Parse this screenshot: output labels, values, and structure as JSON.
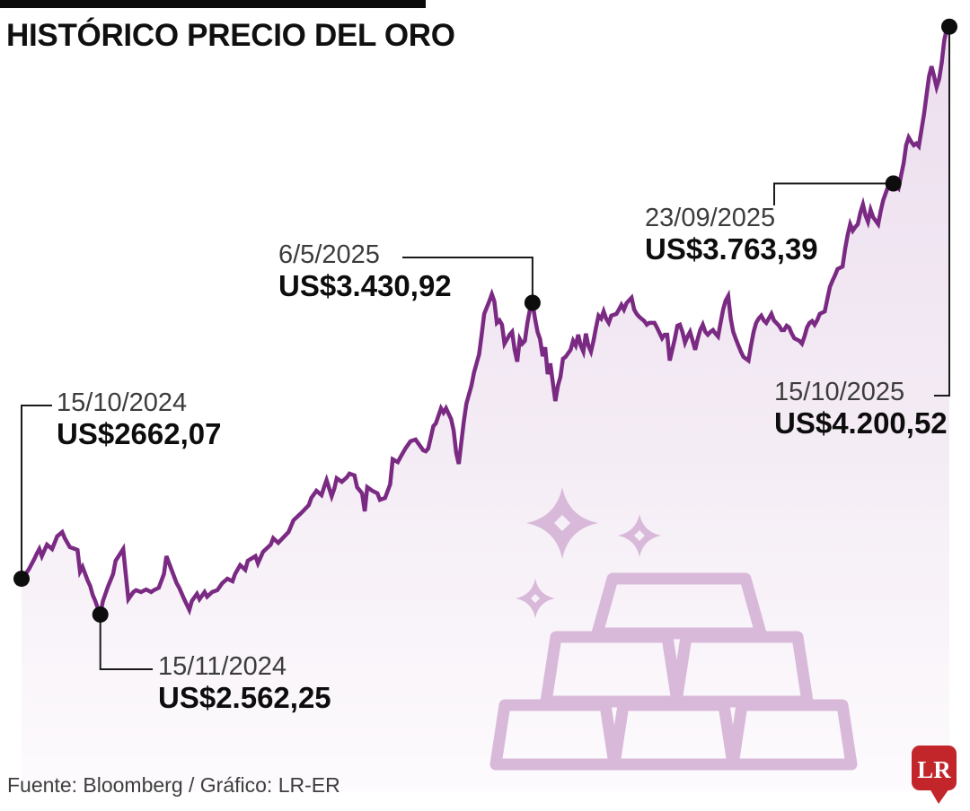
{
  "title": "HISTÓRICO PRECIO DEL ORO",
  "footer": {
    "source": "Fuente: Bloomberg / Gráfico: LR-ER"
  },
  "logo": {
    "text": "LR",
    "color": "#c2262b"
  },
  "colors": {
    "line": "#7a2a82",
    "fill_top": "#ecdeee",
    "fill_mid": "#f4ecf5",
    "fill_bottom": "#fdfbfd",
    "marker": "#0d0d0d",
    "connector": "#1a1a1a",
    "watermark": "#d9b9da",
    "title_bar": "#0b0b0b"
  },
  "chart_data": {
    "type": "area",
    "title": "HISTÓRICO PRECIO DEL ORO",
    "x_axis": {
      "unit": "days since 15/10/2024",
      "start": "15/10/2024",
      "end": "15/10/2025"
    },
    "y_axis": {
      "unit": "USD per troy ounce",
      "approx_range": [
        2550,
        4210
      ]
    },
    "grid": false,
    "legend": false,
    "values_are_approximate_except_annotations": true,
    "annotations": [
      {
        "id": "p1",
        "date": "15/10/2024",
        "price": 2662.07,
        "price_label": "US$2662,07",
        "day": 0
      },
      {
        "id": "p2",
        "date": "15/11/2024",
        "price": 2562.25,
        "price_label": "US$2.562,25",
        "day": 31
      },
      {
        "id": "p3",
        "date": "6/5/2025",
        "price": 3430.92,
        "price_label": "US$3.430,92",
        "day": 201
      },
      {
        "id": "p4",
        "date": "23/09/2025",
        "price": 3763.39,
        "price_label": "US$3.763,39",
        "day": 343
      },
      {
        "id": "p5",
        "date": "15/10/2025",
        "price": 4200.52,
        "price_label": "US$4.200,52",
        "day": 365
      }
    ],
    "series": [
      [
        0,
        2662.07
      ],
      [
        1,
        2668
      ],
      [
        3,
        2690
      ],
      [
        5,
        2717
      ],
      [
        6,
        2732
      ],
      [
        7,
        2745
      ],
      [
        8,
        2725
      ],
      [
        10,
        2757
      ],
      [
        12,
        2745
      ],
      [
        13,
        2762
      ],
      [
        14,
        2780
      ],
      [
        16,
        2792
      ],
      [
        17,
        2775
      ],
      [
        19,
        2750
      ],
      [
        21,
        2745
      ],
      [
        22,
        2742
      ],
      [
        23,
        2682
      ],
      [
        24,
        2695
      ],
      [
        26,
        2657
      ],
      [
        27,
        2642
      ],
      [
        28,
        2617
      ],
      [
        29,
        2600
      ],
      [
        30,
        2580
      ],
      [
        31,
        2562.25
      ],
      [
        32,
        2600
      ],
      [
        34,
        2640
      ],
      [
        36,
        2675
      ],
      [
        37,
        2712
      ],
      [
        40,
        2745
      ],
      [
        41,
        2675
      ],
      [
        42,
        2605
      ],
      [
        44,
        2625
      ],
      [
        45,
        2630
      ],
      [
        47,
        2625
      ],
      [
        49,
        2632
      ],
      [
        51,
        2625
      ],
      [
        52,
        2630
      ],
      [
        54,
        2637
      ],
      [
        56,
        2675
      ],
      [
        57,
        2725
      ],
      [
        59,
        2687
      ],
      [
        61,
        2650
      ],
      [
        62,
        2637
      ],
      [
        64,
        2605
      ],
      [
        66,
        2575
      ],
      [
        67,
        2600
      ],
      [
        69,
        2620
      ],
      [
        70,
        2605
      ],
      [
        72,
        2625
      ],
      [
        73,
        2612
      ],
      [
        75,
        2625
      ],
      [
        77,
        2630
      ],
      [
        79,
        2650
      ],
      [
        81,
        2662
      ],
      [
        83,
        2655
      ],
      [
        84,
        2675
      ],
      [
        86,
        2700
      ],
      [
        88,
        2687
      ],
      [
        89,
        2712
      ],
      [
        92,
        2725
      ],
      [
        93,
        2705
      ],
      [
        95,
        2737
      ],
      [
        98,
        2757
      ],
      [
        99,
        2775
      ],
      [
        101,
        2762
      ],
      [
        105,
        2792
      ],
      [
        107,
        2825
      ],
      [
        110,
        2845
      ],
      [
        113,
        2867
      ],
      [
        114,
        2887
      ],
      [
        116,
        2907
      ],
      [
        118,
        2895
      ],
      [
        119,
        2917
      ],
      [
        120,
        2937
      ],
      [
        122,
        2892
      ],
      [
        123,
        2912
      ],
      [
        124,
        2942
      ],
      [
        126,
        2932
      ],
      [
        128,
        2945
      ],
      [
        129,
        2955
      ],
      [
        131,
        2950
      ],
      [
        132,
        2917
      ],
      [
        134,
        2900
      ],
      [
        135,
        2850
      ],
      [
        136,
        2917
      ],
      [
        138,
        2907
      ],
      [
        140,
        2900
      ],
      [
        141,
        2882
      ],
      [
        143,
        2887
      ],
      [
        145,
        2925
      ],
      [
        146,
        2995
      ],
      [
        148,
        2987
      ],
      [
        149,
        3000
      ],
      [
        151,
        3025
      ],
      [
        153,
        3045
      ],
      [
        155,
        3050
      ],
      [
        156,
        3040
      ],
      [
        158,
        3020
      ],
      [
        159,
        3017
      ],
      [
        160,
        3025
      ],
      [
        162,
        3087
      ],
      [
        163,
        3095
      ],
      [
        165,
        3137
      ],
      [
        166,
        3125
      ],
      [
        167,
        3137
      ],
      [
        169,
        3107
      ],
      [
        170,
        3075
      ],
      [
        171,
        3012
      ],
      [
        172,
        2982
      ],
      [
        174,
        3100
      ],
      [
        175,
        3150
      ],
      [
        177,
        3200
      ],
      [
        178,
        3237
      ],
      [
        180,
        3287
      ],
      [
        181,
        3342
      ],
      [
        182,
        3400
      ],
      [
        184,
        3435
      ],
      [
        185,
        3455
      ],
      [
        186,
        3435
      ],
      [
        187,
        3375
      ],
      [
        188,
        3382
      ],
      [
        189,
        3370
      ],
      [
        190,
        3317
      ],
      [
        192,
        3342
      ],
      [
        193,
        3350
      ],
      [
        194,
        3300
      ],
      [
        195,
        3267
      ],
      [
        196,
        3330
      ],
      [
        197,
        3317
      ],
      [
        198,
        3325
      ],
      [
        199,
        3375
      ],
      [
        200,
        3412
      ],
      [
        201,
        3430.92
      ],
      [
        202,
        3387
      ],
      [
        203,
        3350
      ],
      [
        204,
        3330
      ],
      [
        205,
        3282
      ],
      [
        206,
        3307
      ],
      [
        207,
        3232
      ],
      [
        208,
        3262
      ],
      [
        210,
        3157
      ],
      [
        211,
        3200
      ],
      [
        212,
        3225
      ],
      [
        213,
        3275
      ],
      [
        214,
        3280
      ],
      [
        216,
        3300
      ],
      [
        217,
        3325
      ],
      [
        218,
        3312
      ],
      [
        219,
        3342
      ],
      [
        220,
        3312
      ],
      [
        221,
        3295
      ],
      [
        222,
        3345
      ],
      [
        223,
        3312
      ],
      [
        224,
        3295
      ],
      [
        225,
        3325
      ],
      [
        226,
        3362
      ],
      [
        227,
        3395
      ],
      [
        228,
        3387
      ],
      [
        229,
        3407
      ],
      [
        230,
        3387
      ],
      [
        231,
        3375
      ],
      [
        232,
        3395
      ],
      [
        234,
        3400
      ],
      [
        235,
        3412
      ],
      [
        236,
        3425
      ],
      [
        237,
        3412
      ],
      [
        238,
        3430
      ],
      [
        240,
        3445
      ],
      [
        241,
        3412
      ],
      [
        242,
        3400
      ],
      [
        243,
        3392
      ],
      [
        245,
        3380
      ],
      [
        246,
        3370
      ],
      [
        247,
        3375
      ],
      [
        249,
        3375
      ],
      [
        250,
        3362
      ],
      [
        252,
        3332
      ],
      [
        253,
        3342
      ],
      [
        254,
        3342
      ],
      [
        255,
        3270
      ],
      [
        256,
        3300
      ],
      [
        257,
        3330
      ],
      [
        258,
        3367
      ],
      [
        259,
        3370
      ],
      [
        260,
        3350
      ],
      [
        261,
        3320
      ],
      [
        262,
        3337
      ],
      [
        263,
        3350
      ],
      [
        264,
        3325
      ],
      [
        265,
        3300
      ],
      [
        266,
        3330
      ],
      [
        267,
        3355
      ],
      [
        268,
        3370
      ],
      [
        269,
        3350
      ],
      [
        270,
        3342
      ],
      [
        271,
        3350
      ],
      [
        272,
        3355
      ],
      [
        273,
        3345
      ],
      [
        274,
        3337
      ],
      [
        275,
        3375
      ],
      [
        276,
        3412
      ],
      [
        277,
        3437
      ],
      [
        278,
        3450
      ],
      [
        279,
        3387
      ],
      [
        280,
        3350
      ],
      [
        281,
        3330
      ],
      [
        282,
        3312
      ],
      [
        283,
        3295
      ],
      [
        284,
        3280
      ],
      [
        286,
        3270
      ],
      [
        287,
        3312
      ],
      [
        288,
        3350
      ],
      [
        289,
        3375
      ],
      [
        290,
        3387
      ],
      [
        291,
        3395
      ],
      [
        292,
        3382
      ],
      [
        293,
        3375
      ],
      [
        295,
        3400
      ],
      [
        296,
        3382
      ],
      [
        298,
        3367
      ],
      [
        299,
        3355
      ],
      [
        300,
        3355
      ],
      [
        301,
        3367
      ],
      [
        302,
        3362
      ],
      [
        303,
        3345
      ],
      [
        304,
        3332
      ],
      [
        306,
        3325
      ],
      [
        307,
        3317
      ],
      [
        308,
        3337
      ],
      [
        309,
        3362
      ],
      [
        310,
        3375
      ],
      [
        311,
        3380
      ],
      [
        312,
        3370
      ],
      [
        313,
        3382
      ],
      [
        314,
        3400
      ],
      [
        316,
        3407
      ],
      [
        317,
        3442
      ],
      [
        318,
        3475
      ],
      [
        319,
        3492
      ],
      [
        320,
        3507
      ],
      [
        321,
        3525
      ],
      [
        323,
        3532
      ],
      [
        324,
        3582
      ],
      [
        325,
        3620
      ],
      [
        326,
        3650
      ],
      [
        327,
        3632
      ],
      [
        328,
        3642
      ],
      [
        329,
        3650
      ],
      [
        330,
        3682
      ],
      [
        331,
        3705
      ],
      [
        332,
        3675
      ],
      [
        333,
        3657
      ],
      [
        334,
        3690
      ],
      [
        335,
        3670
      ],
      [
        337,
        3650
      ],
      [
        338,
        3687
      ],
      [
        339,
        3717
      ],
      [
        340,
        3737
      ],
      [
        341,
        3757
      ],
      [
        343,
        3763.39
      ],
      [
        344,
        3757
      ],
      [
        345,
        3750
      ],
      [
        346,
        3785
      ],
      [
        347,
        3820
      ],
      [
        348,
        3870
      ],
      [
        349,
        3892
      ],
      [
        350,
        3880
      ],
      [
        351,
        3870
      ],
      [
        352,
        3875
      ],
      [
        353,
        3867
      ],
      [
        354,
        3912
      ],
      [
        355,
        3955
      ],
      [
        357,
        4062
      ],
      [
        358,
        4090
      ],
      [
        359,
        4062
      ],
      [
        360,
        4032
      ],
      [
        361,
        4055
      ],
      [
        362,
        4100
      ],
      [
        363,
        4162
      ],
      [
        364,
        4195
      ],
      [
        365,
        4200.52
      ]
    ]
  }
}
